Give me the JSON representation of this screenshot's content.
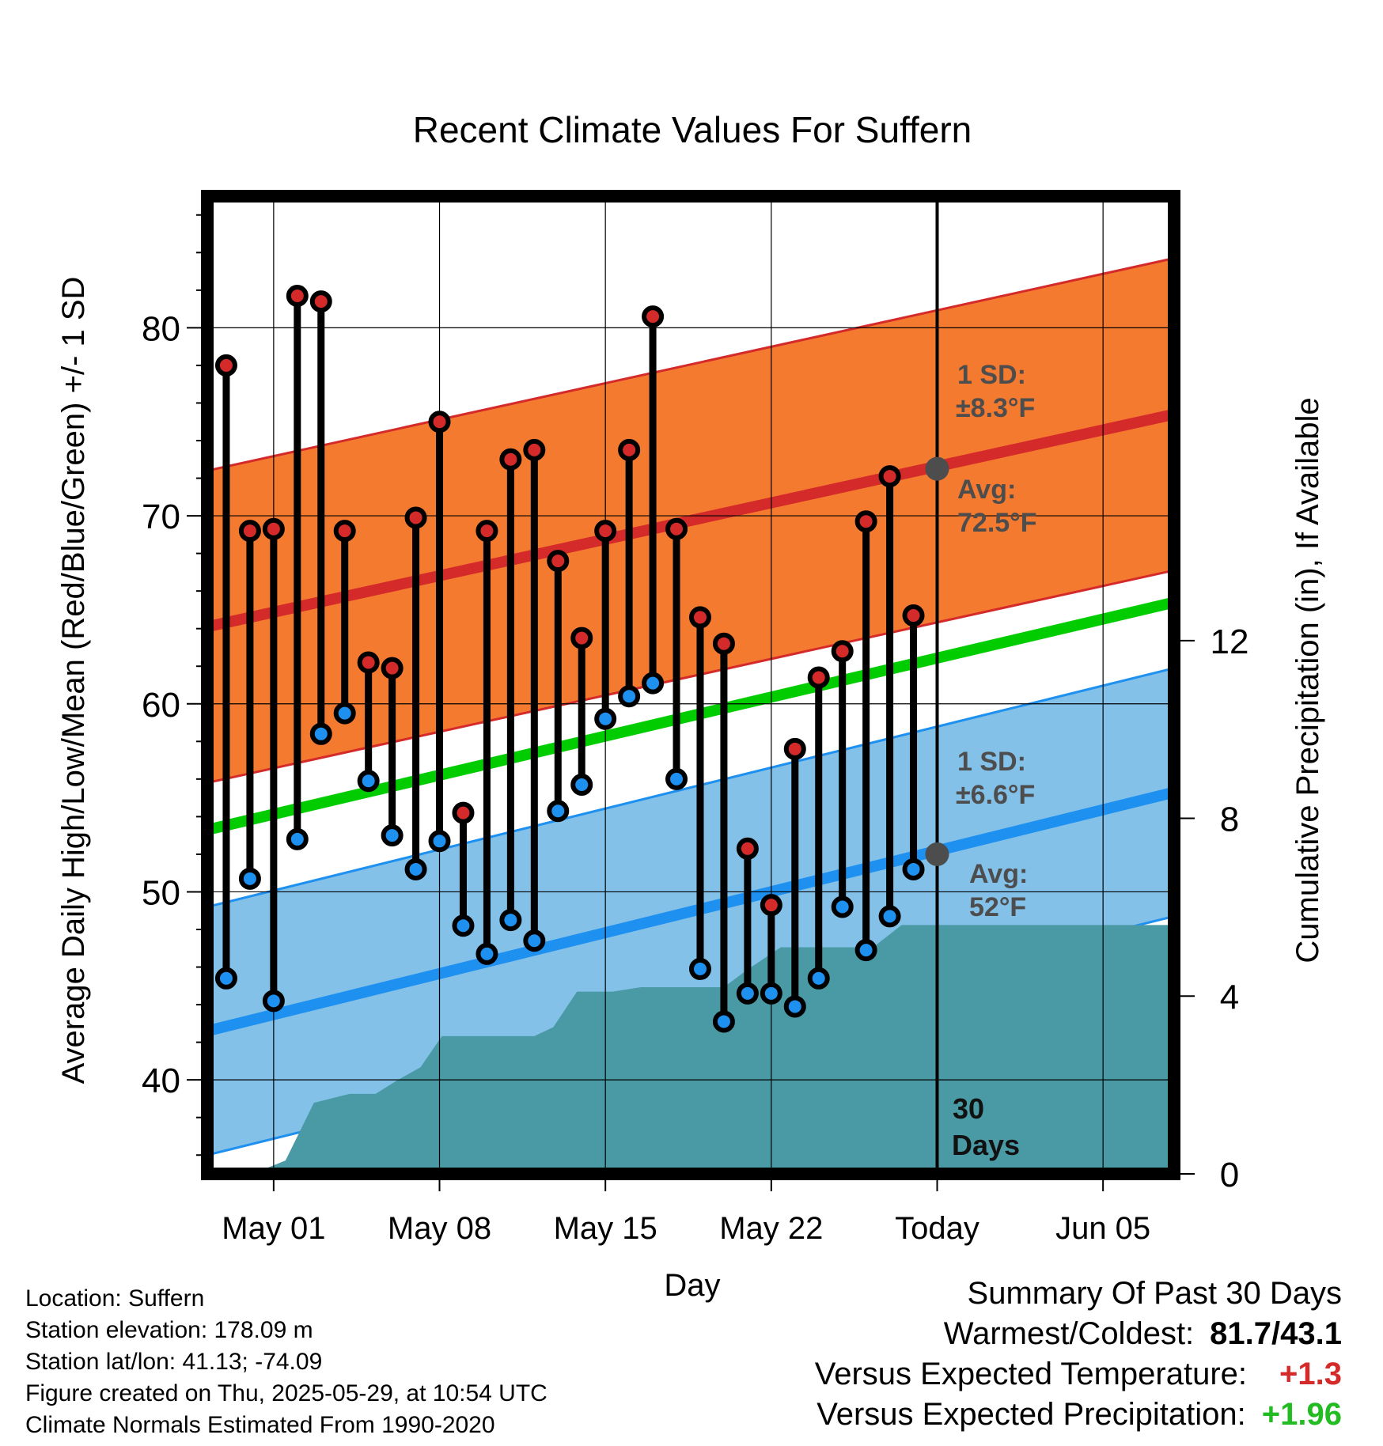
{
  "title": "Recent Climate Values For Suffern",
  "xlabel": "Day",
  "ylabel_left": "Average Daily High/Low/Mean (Red/Blue/Green) +/- 1 SD",
  "ylabel_right": "Cumulative Precipitation (in), If Available",
  "colors": {
    "high_band": "#f47a30",
    "high_avg_line": "#d42a2a",
    "low_band": "#83c1e8",
    "low_avg_line": "#1e90f0",
    "mean_line": "#00cc00",
    "precip_fill": "#4a9aa6",
    "high_dot": "#d42a2a",
    "low_dot": "#1e90f0",
    "annotation_gray": "#4d4d4d"
  },
  "annotations": {
    "high_sd_line1": "1 SD:",
    "high_sd_line2": "±8.3°F",
    "high_avg_line1": "Avg:",
    "high_avg_line2": "72.5°F",
    "low_sd_line1": "1 SD:",
    "low_sd_line2": "±6.6°F",
    "low_avg_line1": "Avg:",
    "low_avg_line2": "52°F",
    "days_line1": "30",
    "days_line2": "Days"
  },
  "chart_data": {
    "type": "line",
    "x_axis": {
      "ticks": [
        "May 01",
        "May 08",
        "May 15",
        "May 22",
        "Today",
        "Jun 05"
      ],
      "tick_days": [
        1,
        8,
        15,
        22,
        29,
        36
      ],
      "range_days": [
        -1.8,
        39
      ]
    },
    "y_left": {
      "range": [
        35,
        87
      ],
      "ticks": [
        40,
        50,
        60,
        70,
        80
      ]
    },
    "y_right": {
      "range": [
        0,
        22
      ],
      "ticks": [
        0,
        4,
        8,
        12
      ]
    },
    "today_day": 29,
    "daily": {
      "days": [
        -1,
        0,
        1,
        2,
        3,
        4,
        5,
        6,
        7,
        8,
        9,
        10,
        11,
        12,
        13,
        14,
        15,
        16,
        17,
        18,
        19,
        20,
        21,
        22,
        23,
        24,
        25,
        26,
        27,
        28
      ],
      "highs": [
        78,
        69.2,
        69.3,
        81.7,
        81.4,
        69.2,
        62.2,
        61.9,
        69.9,
        75,
        54.2,
        69.2,
        73,
        73.5,
        67.6,
        63.5,
        69.2,
        73.5,
        80.6,
        69.3,
        64.6,
        63.2,
        52.3,
        49.3,
        57.6,
        61.4,
        62.8,
        69.7,
        72.1,
        64.7
      ],
      "lows": [
        45.4,
        50.7,
        44.2,
        52.8,
        58.4,
        59.5,
        55.9,
        53,
        51.2,
        52.7,
        48.2,
        46.7,
        48.5,
        47.4,
        54.3,
        55.7,
        59.2,
        60.4,
        61.1,
        56,
        45.9,
        43.1,
        44.6,
        44.6,
        43.9,
        45.4,
        49.2,
        46.9,
        48.7,
        51.2
      ]
    },
    "normals": {
      "high_avg": {
        "start": 64.1,
        "end": 75.4
      },
      "high_sd": 8.3,
      "low_avg": {
        "start": 42.6,
        "end": 55.3
      },
      "low_sd": 6.6,
      "mean_avg": {
        "start": 53.3,
        "end": 65.4
      }
    },
    "normal_markers": {
      "high": 72.5,
      "low": 52
    },
    "precip_cumulative": {
      "days": [
        0.1,
        1.5,
        2.7,
        4.2,
        5.3,
        6.2,
        7.2,
        8.1,
        9,
        11,
        12,
        12.8,
        13.8,
        15.3,
        16.5,
        20,
        21,
        22.4,
        23.5,
        25.5,
        26.3,
        27.5,
        28,
        39
      ],
      "values": [
        0,
        0.3,
        1.6,
        1.8,
        1.8,
        2.1,
        2.4,
        3.1,
        3.1,
        3.1,
        3.1,
        3.3,
        4.1,
        4.1,
        4.2,
        4.2,
        4.6,
        5.1,
        5.1,
        5.1,
        5.1,
        5.6,
        5.6,
        5.6
      ]
    }
  },
  "footer_left": {
    "location": "Location: Suffern",
    "elevation": "Station elevation: 178.09 m",
    "latlon": "Station lat/lon: 41.13; -74.09",
    "created": "Figure created on Thu, 2025-05-29, at 10:54 UTC",
    "normals": "Climate Normals Estimated From 1990-2020"
  },
  "summary": {
    "heading": "Summary Of Past 30 Days",
    "warm_label": "Warmest/Coldest:",
    "warm_value": "81.7/43.1",
    "temp_label": "Versus Expected Temperature:",
    "temp_value": "+1.3",
    "precip_label": "Versus Expected Precipitation:",
    "precip_value": "+1.96"
  }
}
